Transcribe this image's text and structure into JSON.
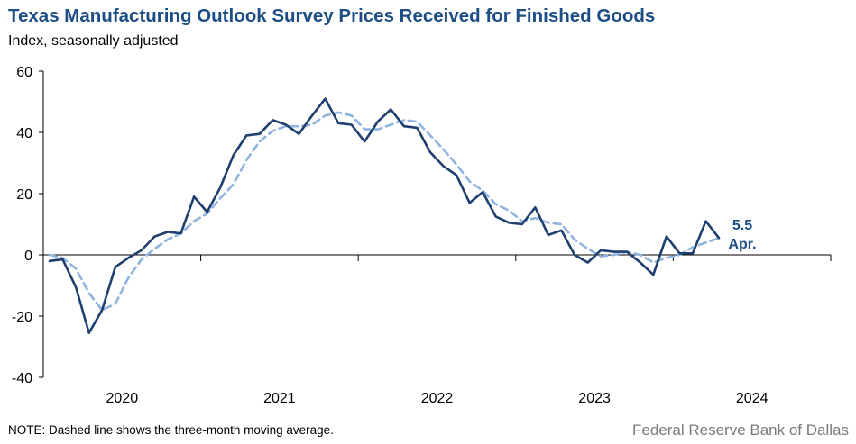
{
  "title": "Texas Manufacturing Outlook Survey Prices Received for Finished Goods",
  "subtitle": "Index, seasonally adjusted",
  "note": "NOTE: Dashed line shows the three-month  moving average.",
  "source": "Federal Reserve Bank of Dallas",
  "colors": {
    "title": "#1d4d85",
    "series": "#1f3f6e",
    "moving_average": "#8fb4df"
  },
  "chart_data": {
    "type": "line",
    "ylim": [
      -40,
      60
    ],
    "yticks": [
      "60",
      "40",
      "20",
      "0",
      "-20",
      "-40"
    ],
    "xticks": [
      "2020",
      "2021",
      "2022",
      "2023",
      "2024"
    ],
    "grid": false,
    "latest_label": {
      "value": "5.5",
      "month": "Apr."
    },
    "series": [
      {
        "values": [
          -2,
          -1.5,
          -10.5,
          -25.5,
          -18,
          -4,
          -1,
          1.5,
          6,
          7.5,
          7,
          19,
          14,
          22,
          32.5,
          39,
          39.5,
          44,
          42.5,
          39.5,
          45.5,
          51,
          43,
          42.5,
          37,
          43.5,
          47.5,
          42,
          41.5,
          33.5,
          29,
          26,
          17,
          20.5,
          12.5,
          10.5,
          10,
          15.5,
          6.5,
          8,
          0,
          -2.5,
          1.5,
          1,
          1,
          -2.5,
          -6.5,
          6,
          0.5,
          0.5,
          11,
          5.5
        ]
      },
      {
        "values": [
          0,
          -1,
          -4.5,
          -12.5,
          -18,
          -16,
          -7.5,
          -1.5,
          2,
          5,
          7,
          11,
          13.5,
          18.5,
          23,
          31,
          37,
          40.5,
          42,
          42,
          42.5,
          45.5,
          46.5,
          45.5,
          41,
          41,
          42.5,
          44,
          43.5,
          39,
          34.5,
          29.5,
          24,
          21,
          16.5,
          14.5,
          11,
          12,
          10.5,
          10,
          5,
          2,
          -0.5,
          0,
          1,
          0,
          -2.5,
          -1,
          0,
          2.5,
          4,
          5.5
        ]
      }
    ]
  }
}
